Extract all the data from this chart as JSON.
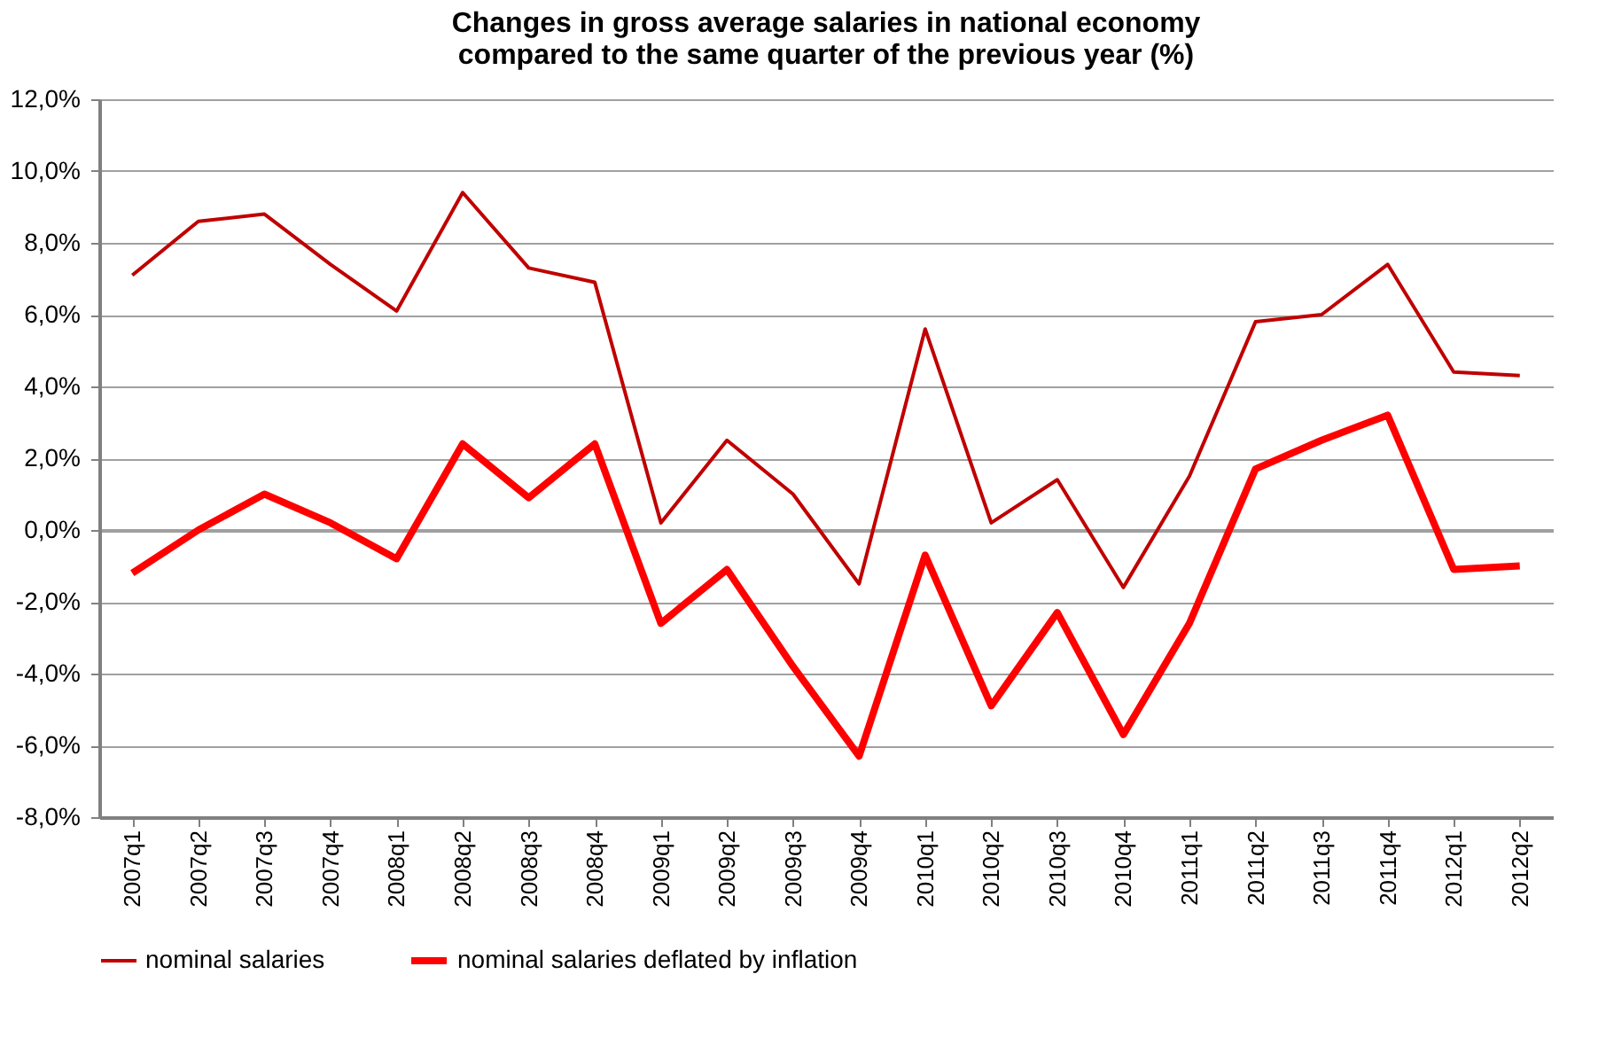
{
  "chart_data": {
    "type": "line",
    "title": [
      "Changes in gross average salaries in national economy",
      "compared to the same quarter of the previous year (%)"
    ],
    "categories": [
      "2007q1",
      "2007q2",
      "2007q3",
      "2007q4",
      "2008q1",
      "2008q2",
      "2008q3",
      "2008q4",
      "2009q1",
      "2009q2",
      "2009q3",
      "2009q4",
      "2010q1",
      "2010q2",
      "2010q3",
      "2010q4",
      "2011q1",
      "2011q2",
      "2011q3",
      "2011q4",
      "2012q1",
      "2012q2"
    ],
    "series": [
      {
        "name": "nominal salaries",
        "color": "#c00000",
        "values": [
          7.1,
          8.6,
          8.8,
          7.4,
          6.1,
          9.4,
          7.3,
          6.9,
          0.2,
          2.5,
          1.0,
          -1.5,
          5.6,
          0.2,
          1.4,
          -1.6,
          1.5,
          5.8,
          6.0,
          7.4,
          4.4,
          4.3
        ]
      },
      {
        "name": "nominal salaries deflated by inflation",
        "color": "#ff0000",
        "values": [
          -1.2,
          0.0,
          1.0,
          0.2,
          -0.8,
          2.4,
          0.9,
          2.4,
          -2.6,
          -1.1,
          -3.8,
          -6.3,
          -0.7,
          -4.9,
          -2.3,
          -5.7,
          -2.6,
          1.7,
          2.5,
          3.2,
          -1.1,
          -1.0
        ]
      }
    ],
    "ylim": [
      -8,
      12
    ],
    "yticks": [
      {
        "value": -8,
        "label": "-8,0%"
      },
      {
        "value": -6,
        "label": "-6,0%"
      },
      {
        "value": -4,
        "label": "-4,0%"
      },
      {
        "value": -2,
        "label": "-2,0%"
      },
      {
        "value": 0,
        "label": "0,0%"
      },
      {
        "value": 2,
        "label": "2,0%"
      },
      {
        "value": 4,
        "label": "4,0%"
      },
      {
        "value": 6,
        "label": "6,0%"
      },
      {
        "value": 8,
        "label": "8,0%"
      },
      {
        "value": 10,
        "label": "10,0%"
      },
      {
        "value": 12,
        "label": "12,0%"
      }
    ],
    "grid": "y",
    "legend": "bottom",
    "marker": "none",
    "line_style": "solid"
  }
}
